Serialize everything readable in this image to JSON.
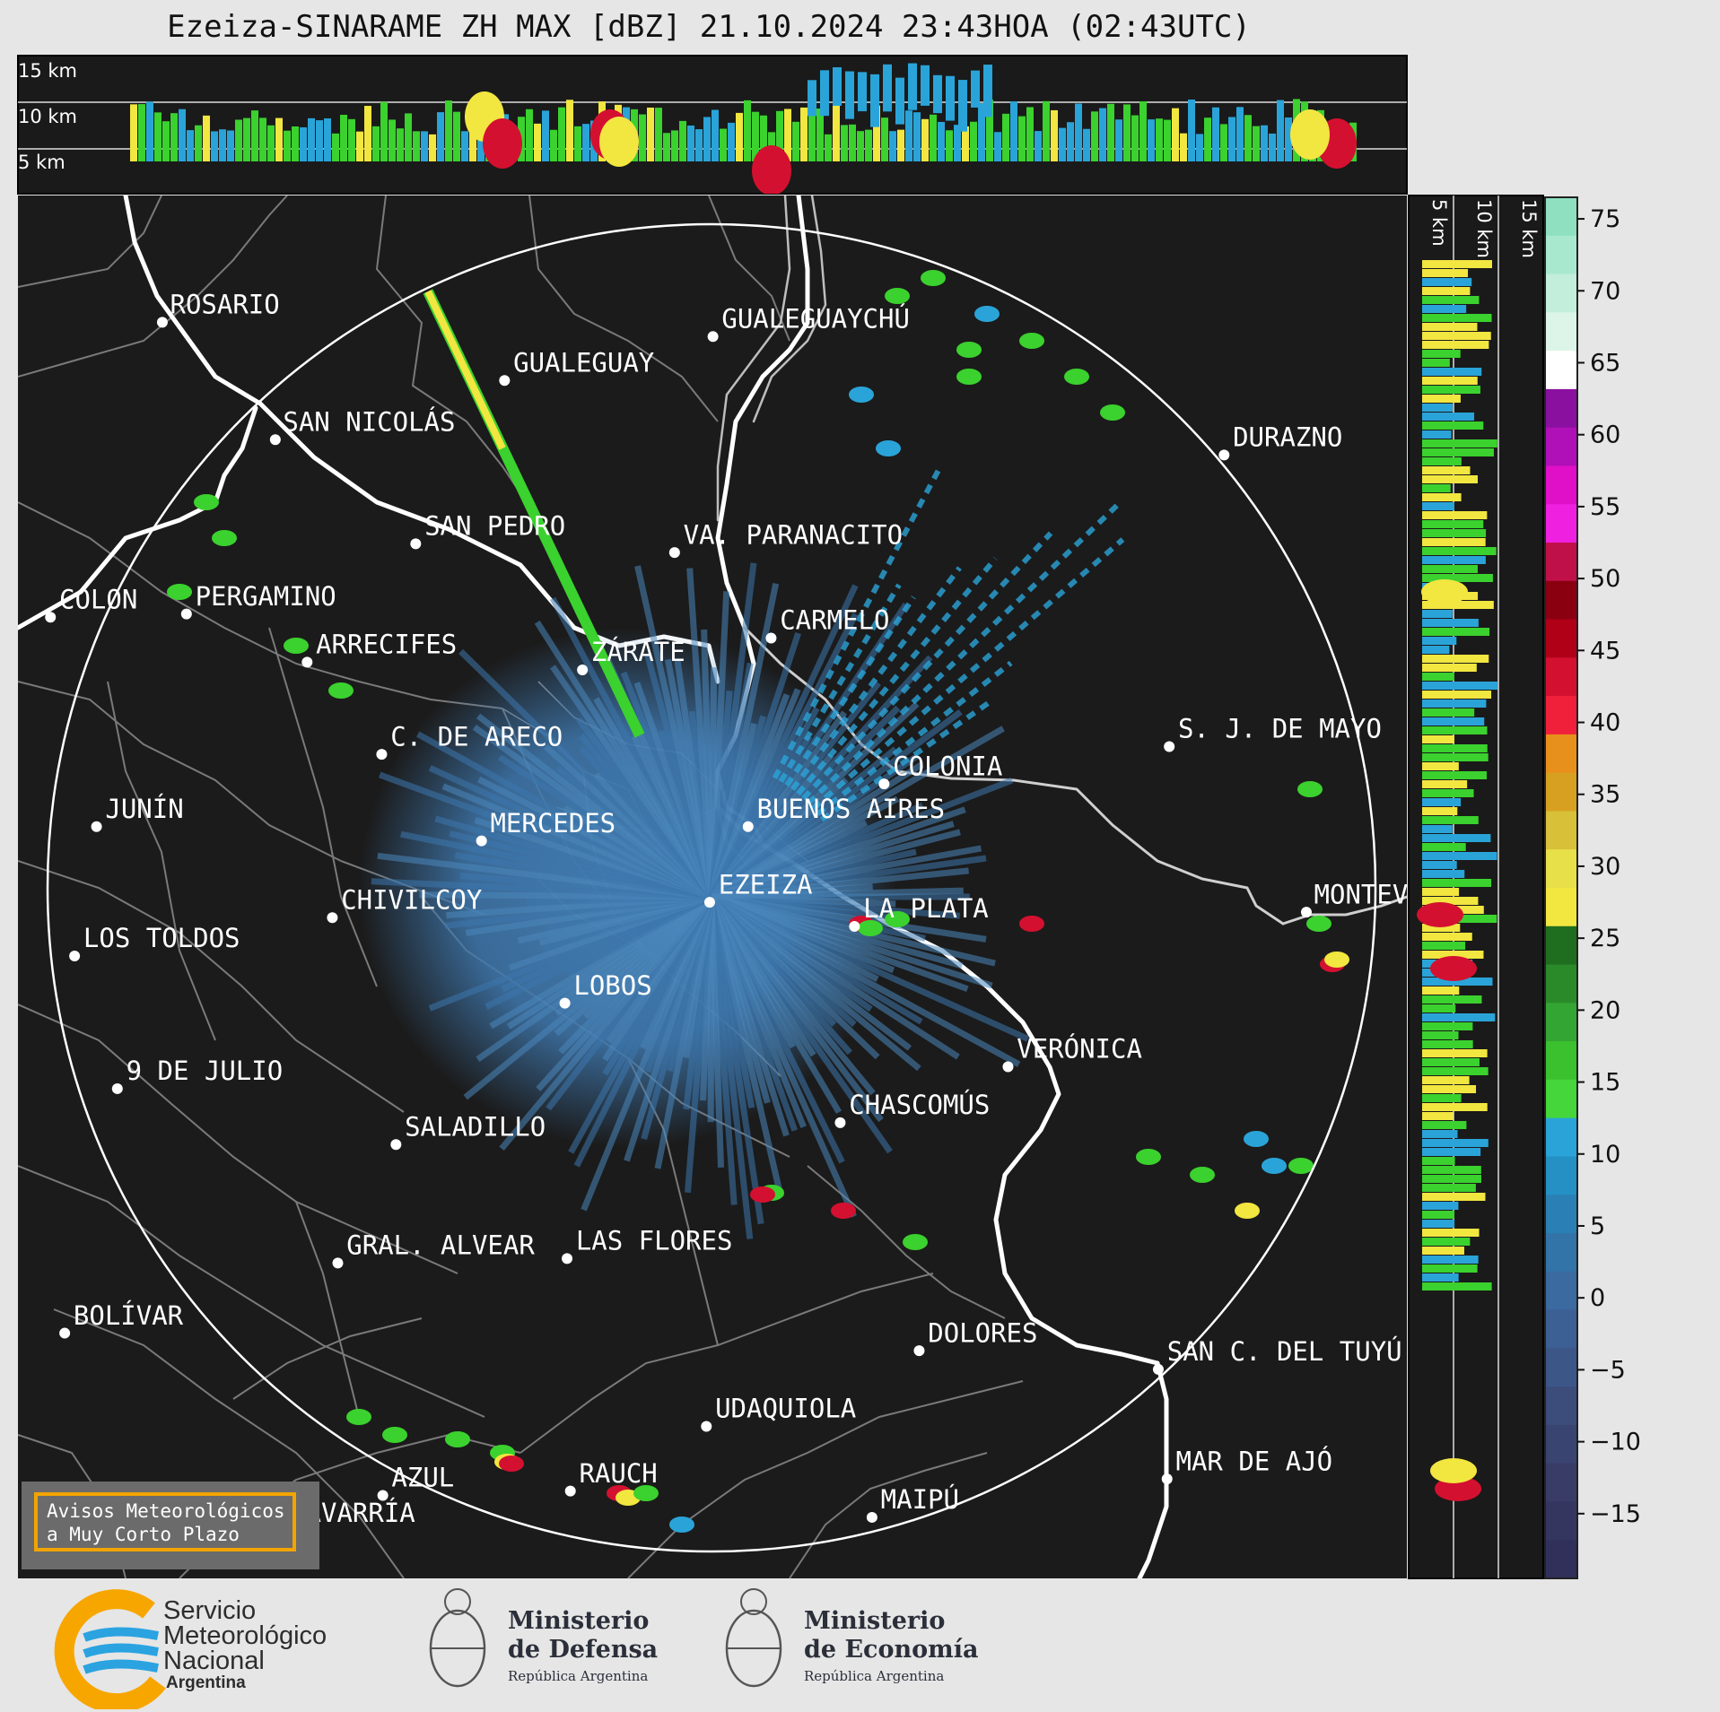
{
  "title": "Ezeiza-SINARAME ZH MAX [dBZ] 21.10.2024 23:43HOA (02:43UTC)",
  "top_profile": {
    "altitude_labels": [
      "15 km",
      "10 km",
      "5 km"
    ]
  },
  "side_profile": {
    "altitude_labels": [
      "5 km",
      "10 km",
      "15 km"
    ]
  },
  "colorbar": {
    "unit": "dBZ",
    "ticks": [
      "75",
      "70",
      "65",
      "60",
      "55",
      "50",
      "45",
      "40",
      "35",
      "30",
      "25",
      "20",
      "15",
      "10",
      "5",
      "0",
      "−5",
      "−10",
      "−15"
    ],
    "colors": {
      "low": "#2e3a6e",
      "mid_low": "#3a74a8",
      "blue": "#2aa4d8",
      "green": "#3bd12e",
      "dark_green": "#1f6e1f",
      "yellow": "#f2e640",
      "orange": "#e8901c",
      "red": "#d41030",
      "dark_red": "#8a0010",
      "magenta": "#e010c8",
      "purple": "#8a10a0",
      "white": "#ffffff",
      "mint": "#8ee0c0"
    }
  },
  "cities": [
    {
      "name": "ROSARIO"
    },
    {
      "name": "GUALEGUAYCHÚ"
    },
    {
      "name": "GUALEGUAY"
    },
    {
      "name": "SAN NICOLÁS"
    },
    {
      "name": "DURAZNO"
    },
    {
      "name": "SAN PEDRO"
    },
    {
      "name": "VA. PARANACITO"
    },
    {
      "name": "COLON"
    },
    {
      "name": "PERGAMINO"
    },
    {
      "name": "CARMELO"
    },
    {
      "name": "ARRECIFES"
    },
    {
      "name": "ZÁRATE"
    },
    {
      "name": "S. J. DE MAYO"
    },
    {
      "name": "C. DE ARECO"
    },
    {
      "name": "COLONIA"
    },
    {
      "name": "BUENOS AIRES"
    },
    {
      "name": "JUNÍN"
    },
    {
      "name": "MERCEDES"
    },
    {
      "name": "MONTEVIDEO"
    },
    {
      "name": "EZEIZA"
    },
    {
      "name": "CHIVILCOY"
    },
    {
      "name": "LA PLATA"
    },
    {
      "name": "LOS TOLDOS"
    },
    {
      "name": "LOBOS"
    },
    {
      "name": "VERÓNICA"
    },
    {
      "name": "9 DE JULIO"
    },
    {
      "name": "CHASCOMÚS"
    },
    {
      "name": "SALADILLO"
    },
    {
      "name": "GRAL. ALVEAR"
    },
    {
      "name": "LAS FLORES"
    },
    {
      "name": "BOLÍVAR"
    },
    {
      "name": "DOLORES"
    },
    {
      "name": "SAN C. DEL TUYÚ"
    },
    {
      "name": "UDAQUIOLA"
    },
    {
      "name": "MAR DE AJÓ"
    },
    {
      "name": "AZUL"
    },
    {
      "name": "RAUCH"
    },
    {
      "name": "MAIPÚ"
    },
    {
      "name": "OLAVARRÍA"
    }
  ],
  "aviso": {
    "line1": "Avisos Meteorológicos",
    "line2": "a Muy Corto Plazo"
  },
  "footer": {
    "smn": {
      "line1": "Servicio",
      "line2": "Meteorológico",
      "line3": "Nacional",
      "line4": "Argentina"
    },
    "defensa": {
      "line1": "Ministerio",
      "line2": "de Defensa",
      "line3": "República Argentina"
    },
    "economia": {
      "line1": "Ministerio",
      "line2": "de Economía",
      "line3": "República Argentina"
    }
  }
}
